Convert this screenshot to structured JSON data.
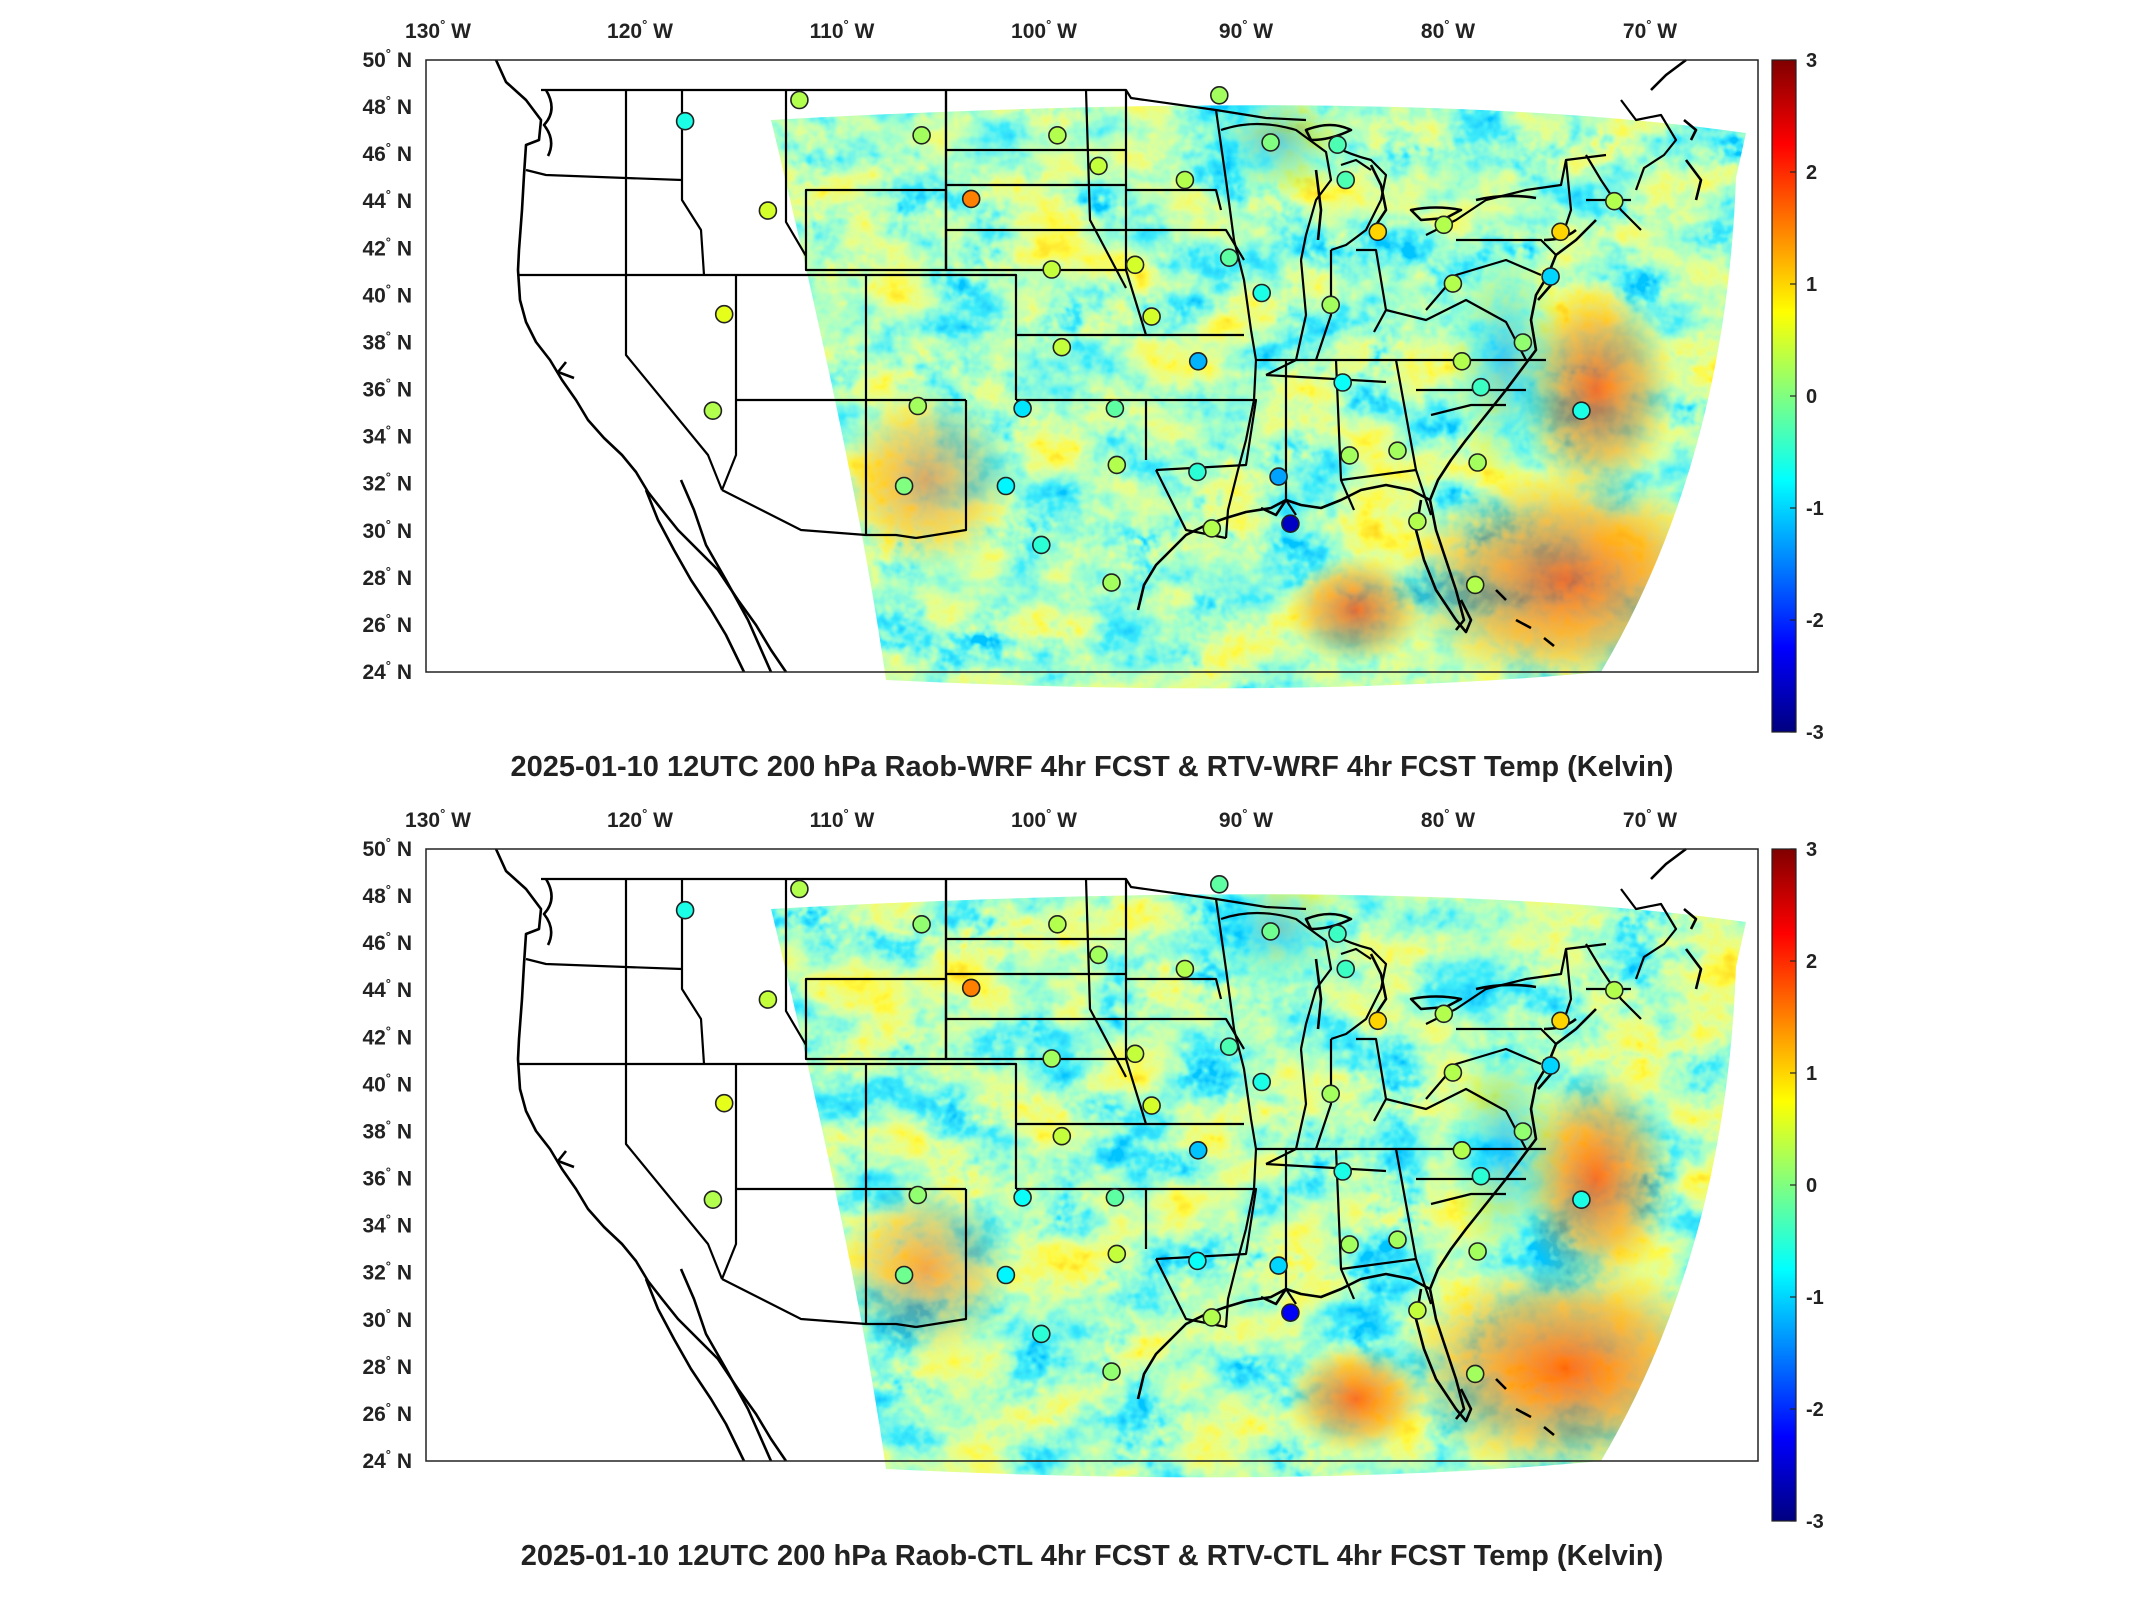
{
  "panels": [
    {
      "id": "top",
      "title": "2025-01-10 12UTC 200 hPa Raob-WRF 4hr FCST & RTV-WRF 4hr FCST Temp (Kelvin)"
    },
    {
      "id": "bottom",
      "title": "2025-01-10 12UTC 200 hPa Raob-CTL 4hr FCST & RTV-CTL 4hr FCST Temp (Kelvin)"
    }
  ],
  "lon_labels": [
    {
      "deg": "130",
      "hem": "W"
    },
    {
      "deg": "120",
      "hem": "W"
    },
    {
      "deg": "110",
      "hem": "W"
    },
    {
      "deg": "100",
      "hem": "W"
    },
    {
      "deg": "90",
      "hem": "W"
    },
    {
      "deg": "80",
      "hem": "W"
    },
    {
      "deg": "70",
      "hem": "W"
    }
  ],
  "lat_labels": [
    {
      "deg": "50",
      "hem": "N"
    },
    {
      "deg": "48",
      "hem": "N"
    },
    {
      "deg": "46",
      "hem": "N"
    },
    {
      "deg": "44",
      "hem": "N"
    },
    {
      "deg": "42",
      "hem": "N"
    },
    {
      "deg": "40",
      "hem": "N"
    },
    {
      "deg": "38",
      "hem": "N"
    },
    {
      "deg": "36",
      "hem": "N"
    },
    {
      "deg": "34",
      "hem": "N"
    },
    {
      "deg": "32",
      "hem": "N"
    },
    {
      "deg": "30",
      "hem": "N"
    },
    {
      "deg": "28",
      "hem": "N"
    },
    {
      "deg": "26",
      "hem": "N"
    },
    {
      "deg": "24",
      "hem": "N"
    }
  ],
  "colorbar": {
    "min": -3,
    "max": 3,
    "ticks": [
      "3",
      "2",
      "1",
      "0",
      "-1",
      "-2",
      "-3"
    ],
    "colormap": [
      "#000080",
      "#0000ff",
      "#0080ff",
      "#00ffff",
      "#80ff80",
      "#ffff00",
      "#ff8000",
      "#ff0000",
      "#800000"
    ]
  },
  "stations": {
    "units": "K",
    "list": [
      {
        "lon": -122.5,
        "lat": 47.4,
        "top": -0.6,
        "bottom": -0.6
      },
      {
        "lon": -116.2,
        "lat": 48.3,
        "top": 0.3,
        "bottom": 0.3
      },
      {
        "lon": -108.6,
        "lat": 46.8,
        "top": 0.2,
        "bottom": 0.1
      },
      {
        "lon": -100.8,
        "lat": 46.8,
        "top": 0.3,
        "bottom": 0.3
      },
      {
        "lon": -105.3,
        "lat": 44.1,
        "top": 1.5,
        "bottom": 1.5
      },
      {
        "lon": -98.4,
        "lat": 45.5,
        "top": 0.4,
        "bottom": 0.2
      },
      {
        "lon": -93.6,
        "lat": 44.9,
        "top": 0.3,
        "bottom": 0.3
      },
      {
        "lon": -91.3,
        "lat": 48.5,
        "top": 0.2,
        "bottom": -0.2
      },
      {
        "lon": -88.6,
        "lat": 46.5,
        "top": 0.0,
        "bottom": -0.1
      },
      {
        "lon": -84.7,
        "lat": 44.9,
        "top": -0.3,
        "bottom": -0.4
      },
      {
        "lon": -116.2,
        "lat": 43.6,
        "top": 0.5,
        "bottom": 0.4
      },
      {
        "lon": -100.7,
        "lat": 41.1,
        "top": 0.4,
        "bottom": 0.2
      },
      {
        "lon": -96.4,
        "lat": 41.3,
        "top": 0.5,
        "bottom": 0.4
      },
      {
        "lon": -91.5,
        "lat": 41.6,
        "top": -0.2,
        "bottom": -0.3
      },
      {
        "lon": -83.5,
        "lat": 42.7,
        "top": 1.0,
        "bottom": 1.0
      },
      {
        "lon": -79.9,
        "lat": 43.0,
        "top": 0.3,
        "bottom": 0.3
      },
      {
        "lon": -73.8,
        "lat": 42.7,
        "top": 1.0,
        "bottom": 1.0
      },
      {
        "lon": -70.3,
        "lat": 44.0,
        "top": 0.3,
        "bottom": 0.3
      },
      {
        "lon": -116.9,
        "lat": 39.2,
        "top": 0.6,
        "bottom": 0.6
      },
      {
        "lon": -100.0,
        "lat": 37.8,
        "top": 0.4,
        "bottom": 0.4
      },
      {
        "lon": -95.6,
        "lat": 39.1,
        "top": 0.5,
        "bottom": 0.5
      },
      {
        "lon": -90.0,
        "lat": 40.1,
        "top": -0.6,
        "bottom": -0.6
      },
      {
        "lon": -86.6,
        "lat": 39.6,
        "top": 0.2,
        "bottom": 0.2
      },
      {
        "lon": -80.2,
        "lat": 40.5,
        "top": 0.3,
        "bottom": 0.3
      },
      {
        "lon": -77.5,
        "lat": 38.0,
        "top": 0.1,
        "bottom": 0.1
      },
      {
        "lon": -75.1,
        "lat": 40.8,
        "top": -1.0,
        "bottom": -1.0
      },
      {
        "lon": -93.4,
        "lat": 37.2,
        "top": -1.2,
        "bottom": -1.1
      },
      {
        "lon": -86.6,
        "lat": 36.3,
        "top": -0.7,
        "bottom": -0.6
      },
      {
        "lon": -80.7,
        "lat": 37.2,
        "top": 0.3,
        "bottom": 0.3
      },
      {
        "lon": -80.1,
        "lat": 36.1,
        "top": -0.4,
        "bottom": -0.5
      },
      {
        "lon": -75.7,
        "lat": 35.1,
        "top": -0.6,
        "bottom": -0.6
      },
      {
        "lon": -116.1,
        "lat": 35.1,
        "top": 0.3,
        "bottom": 0.3
      },
      {
        "lon": -106.6,
        "lat": 35.3,
        "top": 0.2,
        "bottom": 0.1
      },
      {
        "lon": -101.7,
        "lat": 35.2,
        "top": -0.9,
        "bottom": -0.7
      },
      {
        "lon": -97.4,
        "lat": 35.2,
        "top": -0.2,
        "bottom": -0.2
      },
      {
        "lon": -93.7,
        "lat": 32.5,
        "top": -0.5,
        "bottom": -0.7
      },
      {
        "lon": -90.1,
        "lat": 32.3,
        "top": -1.3,
        "bottom": -1.0
      },
      {
        "lon": -86.8,
        "lat": 33.2,
        "top": 0.2,
        "bottom": 0.2
      },
      {
        "lon": -84.6,
        "lat": 33.4,
        "top": 0.2,
        "bottom": 0.2
      },
      {
        "lon": -81.1,
        "lat": 32.9,
        "top": 0.2,
        "bottom": 0.2
      },
      {
        "lon": -106.7,
        "lat": 31.9,
        "top": 0.0,
        "bottom": -0.1
      },
      {
        "lon": -102.2,
        "lat": 31.9,
        "top": -0.8,
        "bottom": -0.8
      },
      {
        "lon": -97.3,
        "lat": 32.8,
        "top": 0.3,
        "bottom": 0.4
      },
      {
        "lon": -100.5,
        "lat": 29.4,
        "top": -0.5,
        "bottom": -0.5
      },
      {
        "lon": -97.5,
        "lat": 27.8,
        "top": 0.2,
        "bottom": 0.1
      },
      {
        "lon": -93.2,
        "lat": 30.1,
        "top": 0.3,
        "bottom": 0.3
      },
      {
        "lon": -89.8,
        "lat": 30.3,
        "top": -2.6,
        "bottom": -2.3
      },
      {
        "lon": -84.3,
        "lat": 30.4,
        "top": 0.3,
        "bottom": 0.4
      },
      {
        "lon": -82.4,
        "lat": 27.7,
        "top": 0.3,
        "bottom": 0.2
      },
      {
        "lon": -84.8,
        "lat": 46.4,
        "top": -0.3,
        "bottom": -0.4
      }
    ]
  }
}
